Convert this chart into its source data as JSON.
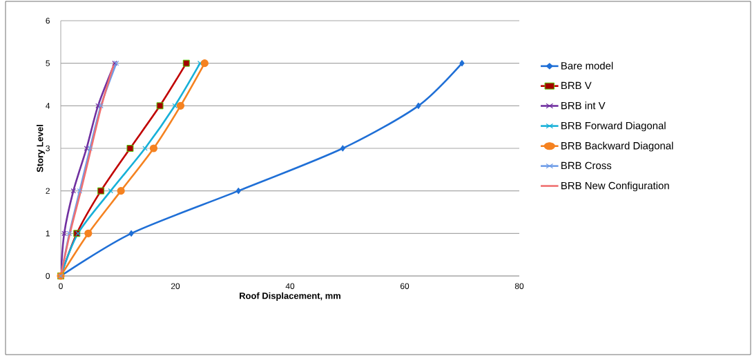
{
  "chart_data": {
    "type": "line",
    "xlabel": "Roof Displacement, mm",
    "ylabel": "Story Level",
    "xlim": [
      0,
      80
    ],
    "xticks": [
      0,
      20,
      40,
      60,
      80
    ],
    "ylim": [
      0,
      6
    ],
    "yticks": [
      0,
      1,
      2,
      3,
      4,
      5,
      6
    ],
    "grid": "y",
    "legend": "right",
    "series": [
      {
        "name": "Bare model",
        "color": "#1f6fd6",
        "marker": "diamond",
        "x": [
          0,
          12.3,
          31.0,
          49.2,
          62.4,
          70.0
        ],
        "values": [
          0,
          1,
          2,
          3,
          4,
          5
        ]
      },
      {
        "name": "BRB V",
        "color": "#c00000",
        "marker": "square",
        "x": [
          0,
          2.8,
          7.0,
          12.1,
          17.3,
          21.9
        ],
        "values": [
          0,
          1,
          2,
          3,
          4,
          5
        ]
      },
      {
        "name": "BRB int V",
        "color": "#7030a0",
        "marker": "cross",
        "x": [
          0,
          0.6,
          2.2,
          4.5,
          6.5,
          9.4
        ],
        "values": [
          0,
          1,
          2,
          3,
          4,
          5
        ]
      },
      {
        "name": "BRB Forward Diagonal",
        "color": "#17b0d8",
        "marker": "cross",
        "x": [
          0,
          3.0,
          8.7,
          14.7,
          19.9,
          24.3
        ],
        "values": [
          0,
          1,
          2,
          3,
          4,
          5
        ]
      },
      {
        "name": "BRB Backward Diagonal",
        "color": "#f58220",
        "marker": "circle",
        "x": [
          0,
          4.8,
          10.5,
          16.2,
          20.9,
          25.1
        ],
        "values": [
          0,
          1,
          2,
          3,
          4,
          5
        ]
      },
      {
        "name": "BRB Cross",
        "color": "#6f9de8",
        "marker": "cross",
        "x": [
          0,
          1.5,
          3.3,
          5.1,
          7.0,
          9.7
        ],
        "values": [
          0,
          1,
          2,
          3,
          4,
          5
        ]
      },
      {
        "name": "BRB New Configuration",
        "color": "#f07070",
        "marker": "none",
        "x": [
          0,
          1.6,
          3.5,
          5.3,
          7.1,
          9.3
        ],
        "values": [
          0,
          1,
          2,
          3,
          4,
          5
        ]
      }
    ]
  }
}
